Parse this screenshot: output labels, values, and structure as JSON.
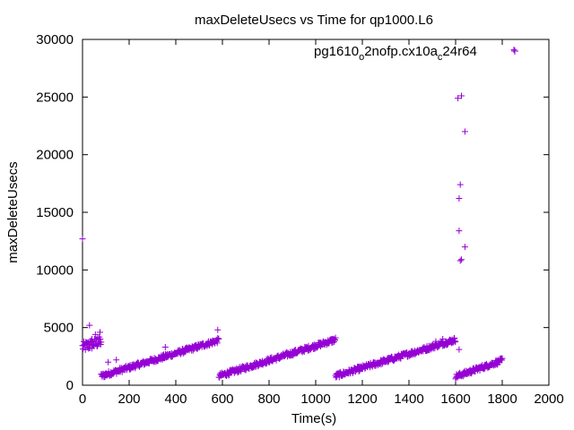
{
  "chart_data": {
    "type": "scatter",
    "title": "maxDeleteUsecs vs Time for qp1000.L6",
    "xlabel": "Time(s)",
    "ylabel": "maxDeleteUsecs",
    "xlim": [
      0,
      2000
    ],
    "ylim": [
      0,
      30000
    ],
    "x_ticks": [
      "0",
      "200",
      "400",
      "600",
      "800",
      "1000",
      "1200",
      "1400",
      "1600",
      "1800",
      "2000"
    ],
    "y_ticks": [
      "0",
      "5000",
      "10000",
      "15000",
      "20000",
      "25000",
      "30000"
    ],
    "grid": false,
    "legend_position": "top-right",
    "marker": "plus",
    "series": [
      {
        "name_parts": [
          "pg1610",
          "o",
          "2nofp.cx10a",
          "c",
          "24r64"
        ],
        "color": "#9400d3",
        "segments": [
          {
            "x_start": 0,
            "x_end": 80,
            "y_start": 3300,
            "y_end": 3800,
            "step": 2,
            "spread": 900
          },
          {
            "x_start": 80,
            "x_end": 585,
            "y_start": 800,
            "y_end": 3900,
            "step": 2,
            "spread": 420
          },
          {
            "x_start": 585,
            "x_end": 1085,
            "y_start": 800,
            "y_end": 3950,
            "step": 2,
            "spread": 420
          },
          {
            "x_start": 1085,
            "x_end": 1600,
            "y_start": 800,
            "y_end": 3950,
            "step": 2,
            "spread": 420
          },
          {
            "x_start": 1600,
            "x_end": 1800,
            "y_start": 750,
            "y_end": 2150,
            "step": 2,
            "spread": 420
          }
        ],
        "points": [
          [
            0,
            12700
          ],
          [
            30,
            5200
          ],
          [
            40,
            4000
          ],
          [
            55,
            4400
          ],
          [
            65,
            4100
          ],
          [
            75,
            4600
          ],
          [
            110,
            2000
          ],
          [
            145,
            2200
          ],
          [
            250,
            1800
          ],
          [
            355,
            3300
          ],
          [
            580,
            4800
          ],
          [
            1515,
            3800
          ],
          [
            1545,
            4000
          ],
          [
            1615,
            3100
          ],
          [
            1610,
            24900
          ],
          [
            1625,
            25100
          ],
          [
            1640,
            22000
          ],
          [
            1620,
            17400
          ],
          [
            1615,
            16200
          ],
          [
            1615,
            13400
          ],
          [
            1620,
            10800
          ],
          [
            1625,
            10900
          ],
          [
            1640,
            12000
          ],
          [
            1850,
            29100
          ]
        ]
      }
    ]
  }
}
